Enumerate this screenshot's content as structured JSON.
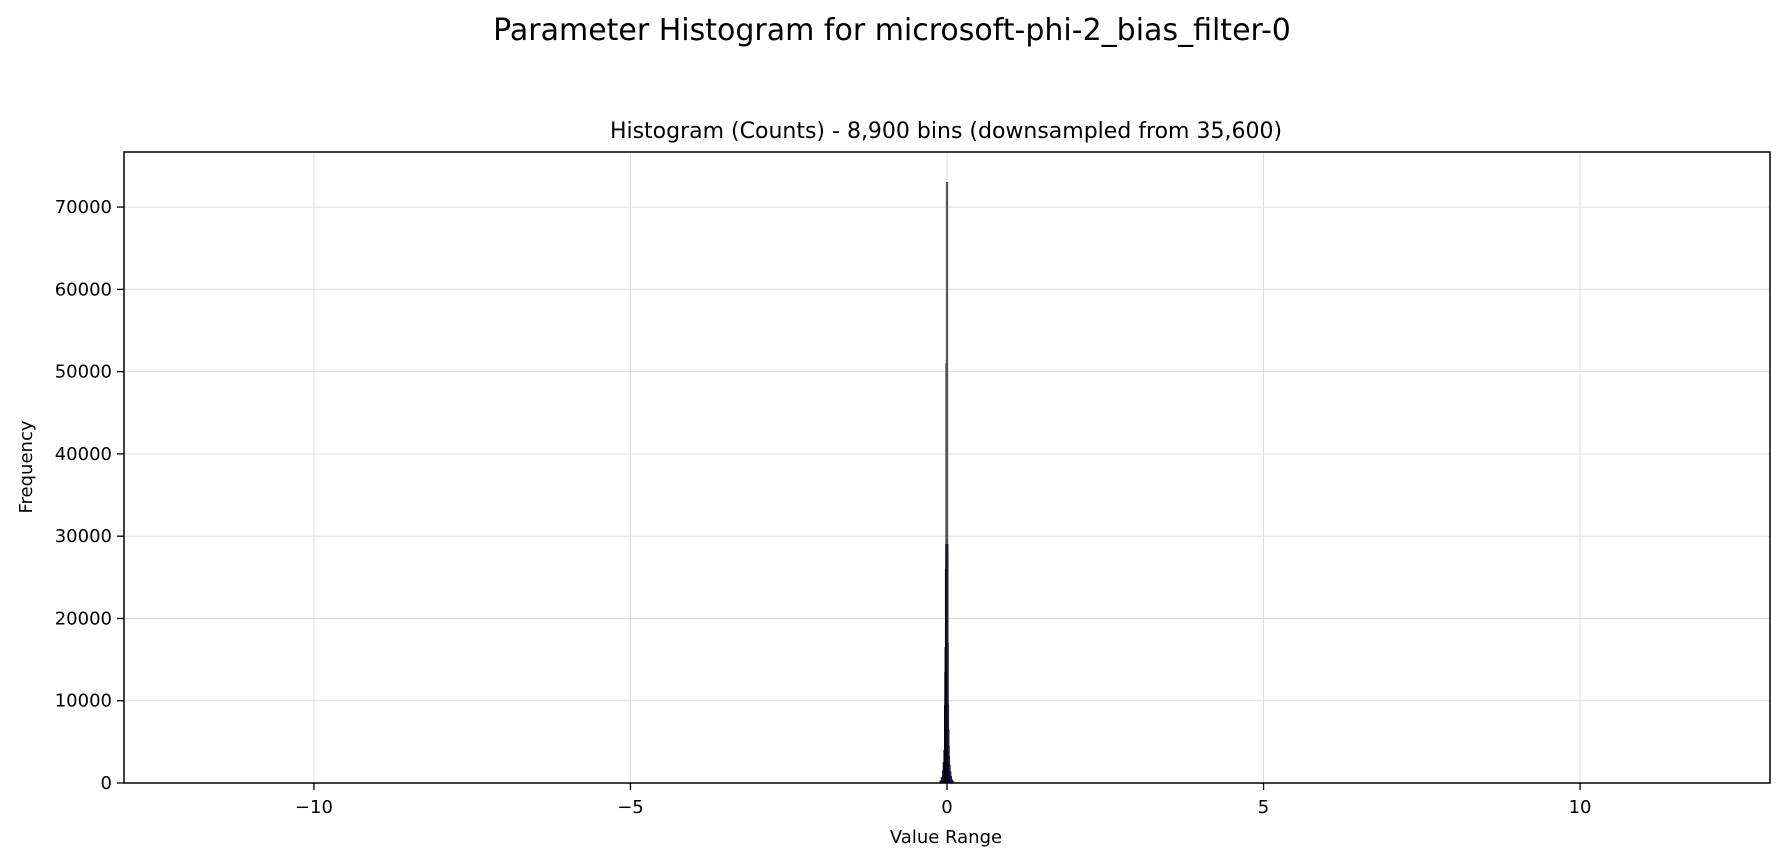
{
  "figure": {
    "suptitle": "Parameter Histogram for microsoft-phi-2_bias_filter-0"
  },
  "chart_data": {
    "type": "bar",
    "title": "Histogram (Counts) - 8,900 bins (downsampled from 35,600)",
    "xlabel": "Value Range",
    "ylabel": "Frequency",
    "xlim": [
      -13.0,
      13.0
    ],
    "ylim": [
      0,
      76700
    ],
    "xticks": [
      -10,
      -5,
      0,
      5,
      10
    ],
    "xtick_labels": [
      "−10",
      "−5",
      "0",
      "5",
      "10"
    ],
    "yticks": [
      0,
      10000,
      20000,
      30000,
      40000,
      50000,
      60000,
      70000
    ],
    "ytick_labels": [
      "0",
      "10000",
      "20000",
      "30000",
      "40000",
      "50000",
      "60000",
      "70000"
    ],
    "grid": true,
    "legend": "none",
    "bar_color": "#1f1f5a",
    "bar_edge_color": "#000000",
    "x": [
      -0.1,
      -0.08,
      -0.06,
      -0.05,
      -0.04,
      -0.03,
      -0.025,
      -0.02,
      -0.015,
      -0.01,
      -0.005,
      0.0,
      0.005,
      0.01,
      0.015,
      0.02,
      0.025,
      0.03,
      0.04,
      0.05,
      0.06,
      0.08,
      0.1
    ],
    "values": [
      300,
      700,
      1500,
      2500,
      4000,
      9500,
      13500,
      16500,
      26000,
      29000,
      51000,
      73000,
      29000,
      17000,
      9500,
      6500,
      4500,
      3200,
      2200,
      1400,
      800,
      400,
      150
    ]
  }
}
